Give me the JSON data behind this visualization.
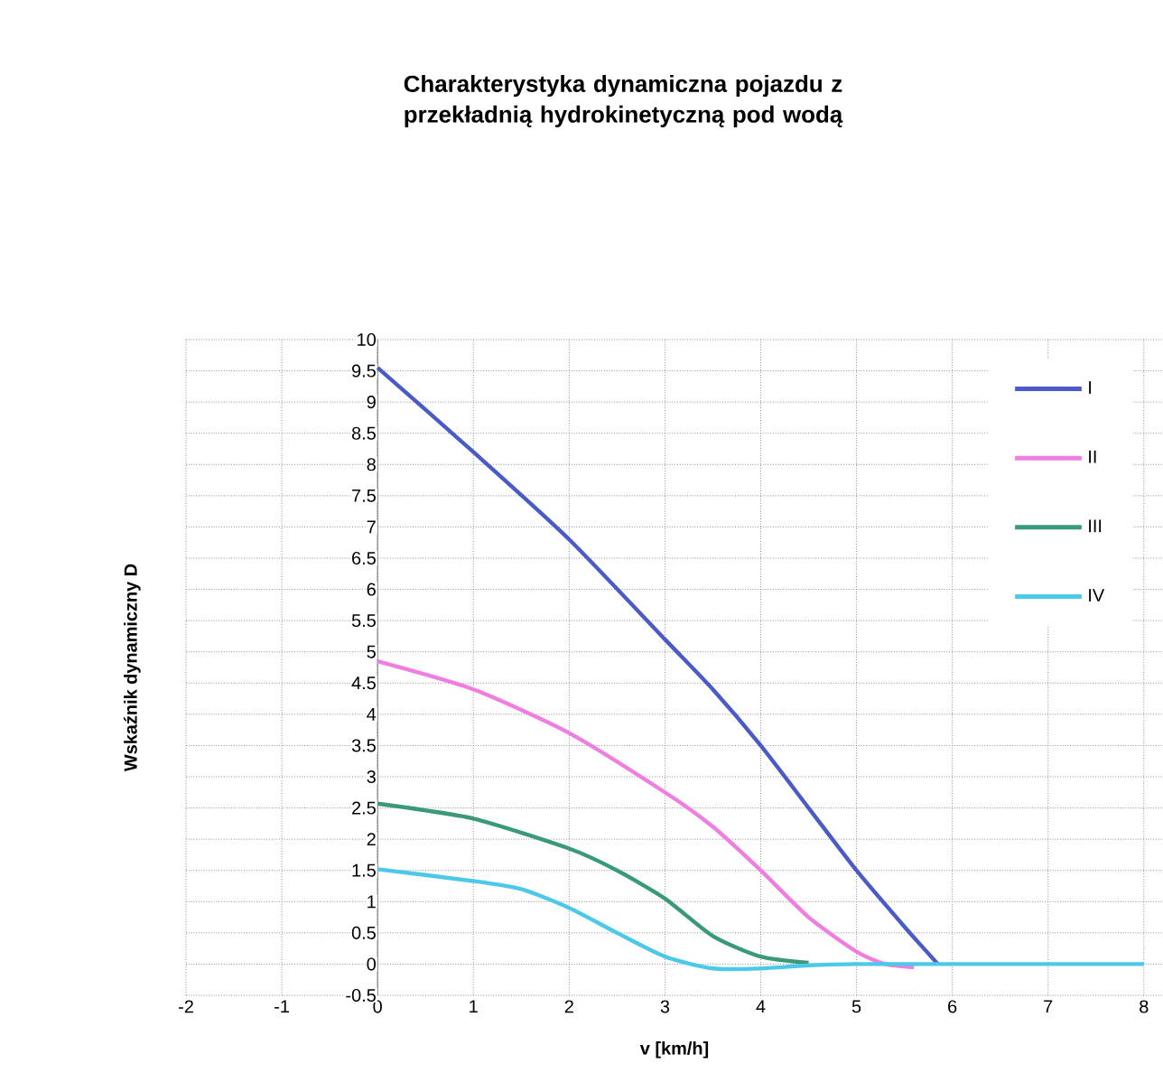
{
  "chart_data": {
    "type": "line",
    "title": "Charakterystyka dynamiczna pojazdu z przekładnią hydrokinetyczną pod wodą",
    "xlabel": "v [km/h]",
    "ylabel": "Wskaźnik dynamiczny D",
    "xlim": [
      -2,
      8.2
    ],
    "ylim": [
      -0.5,
      10
    ],
    "xticks": [
      -2,
      -1,
      0,
      1,
      2,
      3,
      4,
      5,
      6,
      7,
      8
    ],
    "yticks": [
      -0.5,
      0,
      0.5,
      1,
      1.5,
      2,
      2.5,
      3,
      3.5,
      4,
      4.5,
      5,
      5.5,
      6,
      6.5,
      7,
      7.5,
      8,
      8.5,
      9,
      9.5,
      10
    ],
    "grid": true,
    "legend": "top right",
    "marker": "none",
    "line_style": "solid",
    "series": [
      {
        "name": "I",
        "color": "#4a5bc8",
        "x": [
          0,
          1,
          2,
          3,
          3.5,
          4,
          4.5,
          5,
          5.5,
          5.85
        ],
        "values": [
          9.55,
          8.2,
          6.8,
          5.2,
          4.4,
          3.5,
          2.5,
          1.5,
          0.6,
          0
        ]
      },
      {
        "name": "II",
        "color": "#f07ee0",
        "x": [
          0,
          1,
          2,
          3,
          3.5,
          4,
          4.5,
          5,
          5.3,
          5.6
        ],
        "values": [
          4.85,
          4.4,
          3.7,
          2.75,
          2.2,
          1.5,
          0.75,
          0.2,
          0,
          -0.05
        ]
      },
      {
        "name": "III",
        "color": "#3a9a78",
        "x": [
          0,
          1,
          2,
          2.5,
          3,
          3.5,
          4,
          4.5
        ],
        "values": [
          2.57,
          2.33,
          1.85,
          1.5,
          1.05,
          0.45,
          0.12,
          0.02
        ]
      },
      {
        "name": "IV",
        "color": "#4cc8e8",
        "x": [
          0,
          1,
          1.5,
          2,
          2.5,
          3,
          3.5,
          4,
          4.5,
          5,
          6,
          7,
          8
        ],
        "values": [
          1.52,
          1.33,
          1.2,
          0.9,
          0.5,
          0.12,
          -0.07,
          -0.07,
          -0.02,
          0,
          0,
          0,
          0
        ]
      }
    ]
  }
}
